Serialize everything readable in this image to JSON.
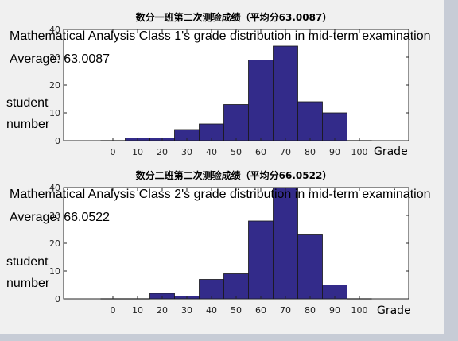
{
  "chart_data": [
    {
      "type": "bar",
      "title": "数分一班第二次测验成绩（平均分63.0087）",
      "overlay_title": "Mathematical Analysis Class 1's grade distribution in mid-term examination",
      "average_label": "Average: 63.0087",
      "ylabel_lines": [
        "student",
        "number"
      ],
      "xlabel": "Grade",
      "x_ticks": [
        0,
        10,
        20,
        30,
        40,
        50,
        60,
        70,
        80,
        90,
        100
      ],
      "y_ticks": [
        0,
        10,
        20,
        30,
        40
      ],
      "xlim": [
        -20,
        120
      ],
      "ylim": [
        0,
        40
      ],
      "bar_width": 10,
      "x": [
        0,
        10,
        20,
        30,
        40,
        50,
        60,
        70,
        80,
        90,
        100
      ],
      "values": [
        0,
        1,
        1,
        4,
        6,
        13,
        29,
        34,
        14,
        10,
        0
      ],
      "color": "#332b8a"
    },
    {
      "type": "bar",
      "title": "数分二班第二次测验成绩（平均分66.0522）",
      "overlay_title": "Mathematical Analysis Class 2's grade distribution in mid-term examination",
      "average_label": "Average: 66.0522",
      "ylabel_lines": [
        "student",
        "number"
      ],
      "xlabel": "Grade",
      "x_ticks": [
        0,
        10,
        20,
        30,
        40,
        50,
        60,
        70,
        80,
        90,
        100
      ],
      "y_ticks": [
        0,
        10,
        20,
        30,
        40
      ],
      "xlim": [
        -20,
        120
      ],
      "ylim": [
        0,
        40
      ],
      "bar_width": 10,
      "x": [
        0,
        10,
        20,
        30,
        40,
        50,
        60,
        70,
        80,
        90,
        100
      ],
      "values": [
        0,
        0,
        2,
        1,
        7,
        9,
        28,
        40,
        23,
        5,
        0
      ],
      "color": "#332b8a"
    }
  ]
}
